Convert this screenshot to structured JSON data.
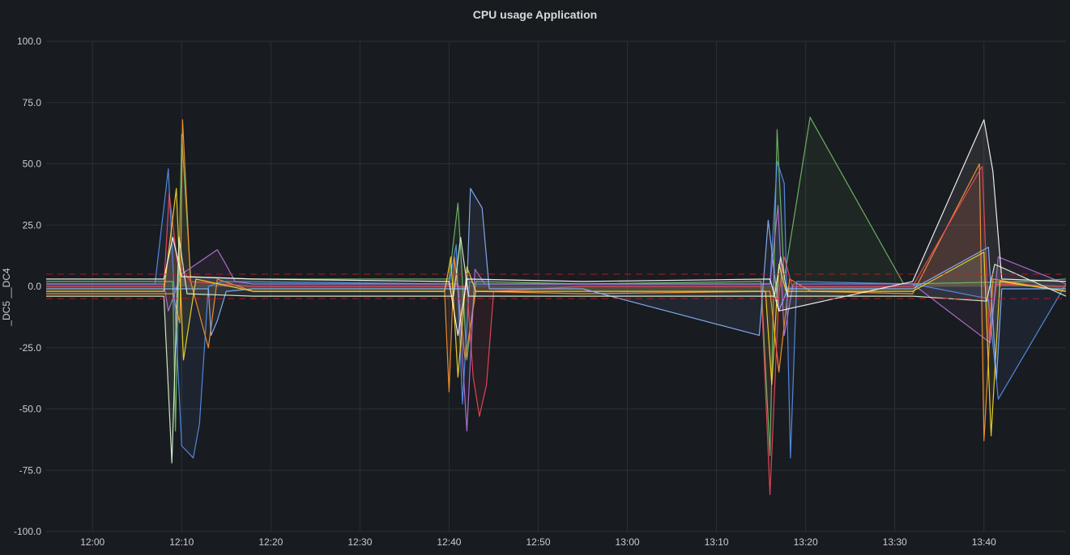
{
  "chart_data": {
    "type": "line",
    "title": "CPU usage Application",
    "ylabel": "_DC5 __DC4",
    "xlabel": "",
    "ylim": [
      -100,
      100
    ],
    "xlim_minutes": [
      714.8,
      829.2
    ],
    "y_ticks": [
      {
        "value": 100,
        "label": "100.0"
      },
      {
        "value": 75,
        "label": "75.0"
      },
      {
        "value": 50,
        "label": "50.0"
      },
      {
        "value": 25,
        "label": "25.0"
      },
      {
        "value": 0,
        "label": "0.0"
      },
      {
        "value": -25,
        "label": "-25.0"
      },
      {
        "value": -50,
        "label": "-50.0"
      },
      {
        "value": -75,
        "label": "-75.0"
      },
      {
        "value": -100,
        "label": "-100.0"
      }
    ],
    "x_ticks": [
      {
        "value": 720,
        "label": "12:00"
      },
      {
        "value": 730,
        "label": "12:10"
      },
      {
        "value": 740,
        "label": "12:20"
      },
      {
        "value": 750,
        "label": "12:30"
      },
      {
        "value": 760,
        "label": "12:40"
      },
      {
        "value": 770,
        "label": "12:50"
      },
      {
        "value": 780,
        "label": "13:00"
      },
      {
        "value": 790,
        "label": "13:10"
      },
      {
        "value": 800,
        "label": "13:20"
      },
      {
        "value": 810,
        "label": "13:30"
      },
      {
        "value": 820,
        "label": "13:40"
      }
    ],
    "grid": true,
    "thresholds": [
      5,
      -5
    ],
    "threshold_color": "#c4162a",
    "series": [
      {
        "color": "#73bf69",
        "x": [
          714.8,
          729,
          729.3,
          730,
          731,
          738,
          760,
          761,
          762,
          763,
          775,
          795,
          796,
          796.8,
          797.6,
          800.5,
          811,
          825,
          829.2
        ],
        "y": [
          2,
          2,
          -59,
          62,
          4,
          3,
          3,
          34,
          -30,
          2,
          1,
          2,
          -69,
          64,
          3,
          69,
          1,
          2,
          3
        ]
      },
      {
        "color": "#ff9830",
        "x": [
          714.8,
          729,
          729.8,
          730.1,
          731,
          733,
          734,
          738,
          759.5,
          760,
          760.6,
          761.8,
          763,
          775,
          796,
          797,
          798.2,
          800.6,
          812,
          819.5,
          820,
          821,
          829.2
        ],
        "y": [
          -3,
          -3,
          -15,
          68,
          2,
          -25,
          3,
          -2,
          -2,
          -43,
          12,
          -30,
          -2,
          -3,
          -2,
          -35,
          3,
          -2,
          -3,
          50,
          -63,
          3,
          -2
        ]
      },
      {
        "color": "#5794f2",
        "x": [
          714.8,
          727,
          728.5,
          730,
          731.3,
          732,
          733,
          734.5,
          760,
          760.8,
          761.5,
          762.3,
          763,
          775,
          796,
          796.8,
          797.6,
          798.3,
          799,
          812,
          820.5,
          821.6,
          829.2
        ],
        "y": [
          1,
          1,
          48,
          -65,
          -70,
          -56,
          0,
          2,
          1,
          17,
          -48,
          2,
          1,
          1,
          1,
          51,
          42,
          -70,
          2,
          1,
          -5,
          -46,
          1
        ]
      },
      {
        "color": "#f2495c",
        "x": [
          714.8,
          728,
          728.6,
          729.5,
          731,
          738,
          762,
          762.7,
          763.4,
          764.2,
          765,
          775,
          795,
          796,
          797,
          797.6,
          798.5,
          812,
          819.8,
          820.6,
          821.4,
          829.2
        ],
        "y": [
          0,
          0,
          38,
          10,
          2,
          0,
          0,
          -37,
          -53,
          -40,
          -2,
          0,
          0,
          -85,
          -3,
          12,
          0,
          0,
          49,
          -22,
          1,
          0
        ]
      },
      {
        "color": "#b877d9",
        "x": [
          714.8,
          728,
          728.5,
          730,
          734,
          734.8,
          736,
          738,
          761,
          762,
          762.9,
          764,
          775,
          796,
          796.9,
          797.6,
          798.6,
          812,
          820.7,
          821.6,
          829.2
        ],
        "y": [
          1,
          1,
          -10,
          5,
          15,
          10,
          2,
          1,
          1,
          -59,
          7,
          1,
          1,
          1,
          33,
          -20,
          1,
          1,
          -23,
          12,
          1
        ]
      },
      {
        "color": "#fade2a",
        "x": [
          714.8,
          728,
          729.4,
          730.2,
          731.6,
          738,
          759.5,
          760.2,
          761,
          762,
          763,
          775,
          795.5,
          796.2,
          797,
          797.8,
          812,
          820,
          820.8,
          821.8,
          829.2
        ],
        "y": [
          -2,
          -2,
          40,
          -30,
          3,
          -2,
          -2,
          12,
          -37,
          8,
          -2,
          -2,
          -2,
          -40,
          9,
          -2,
          -2,
          14,
          -61,
          2,
          -2
        ]
      },
      {
        "color": "#8ab8ff",
        "x": [
          714.8,
          733,
          733.3,
          734,
          735,
          738,
          762,
          762.4,
          763.7,
          764.5,
          775,
          794.8,
          795.8,
          797,
          798,
          812,
          820.5,
          821.4,
          822,
          829.2
        ],
        "y": [
          -1,
          -1,
          -20,
          -14,
          -2,
          -1,
          -1,
          40,
          32,
          -1,
          -1,
          -20,
          27,
          -10,
          -1,
          -1,
          16,
          -38,
          -1,
          -1
        ]
      },
      {
        "color": "#ffffff",
        "x": [
          714.8,
          728,
          729,
          730,
          738,
          760,
          761,
          762,
          775,
          796,
          797,
          812,
          820,
          821,
          822,
          829.2
        ],
        "y": [
          3,
          3,
          20,
          4,
          3,
          2,
          -20,
          3,
          2,
          3,
          -10,
          2,
          68,
          47,
          3,
          2
        ]
      },
      {
        "color": "#e0f9d7",
        "x": [
          714.8,
          728,
          728.9,
          729.7,
          730.6,
          738,
          760.5,
          761.3,
          762.2,
          775,
          796.5,
          797.2,
          798,
          812,
          820.3,
          821.2,
          829.2
        ],
        "y": [
          -4,
          -4,
          -72,
          20,
          -3,
          -4,
          -4,
          20,
          -4,
          -4,
          -4,
          12,
          -4,
          -4,
          -6,
          9,
          -4
        ]
      }
    ]
  }
}
